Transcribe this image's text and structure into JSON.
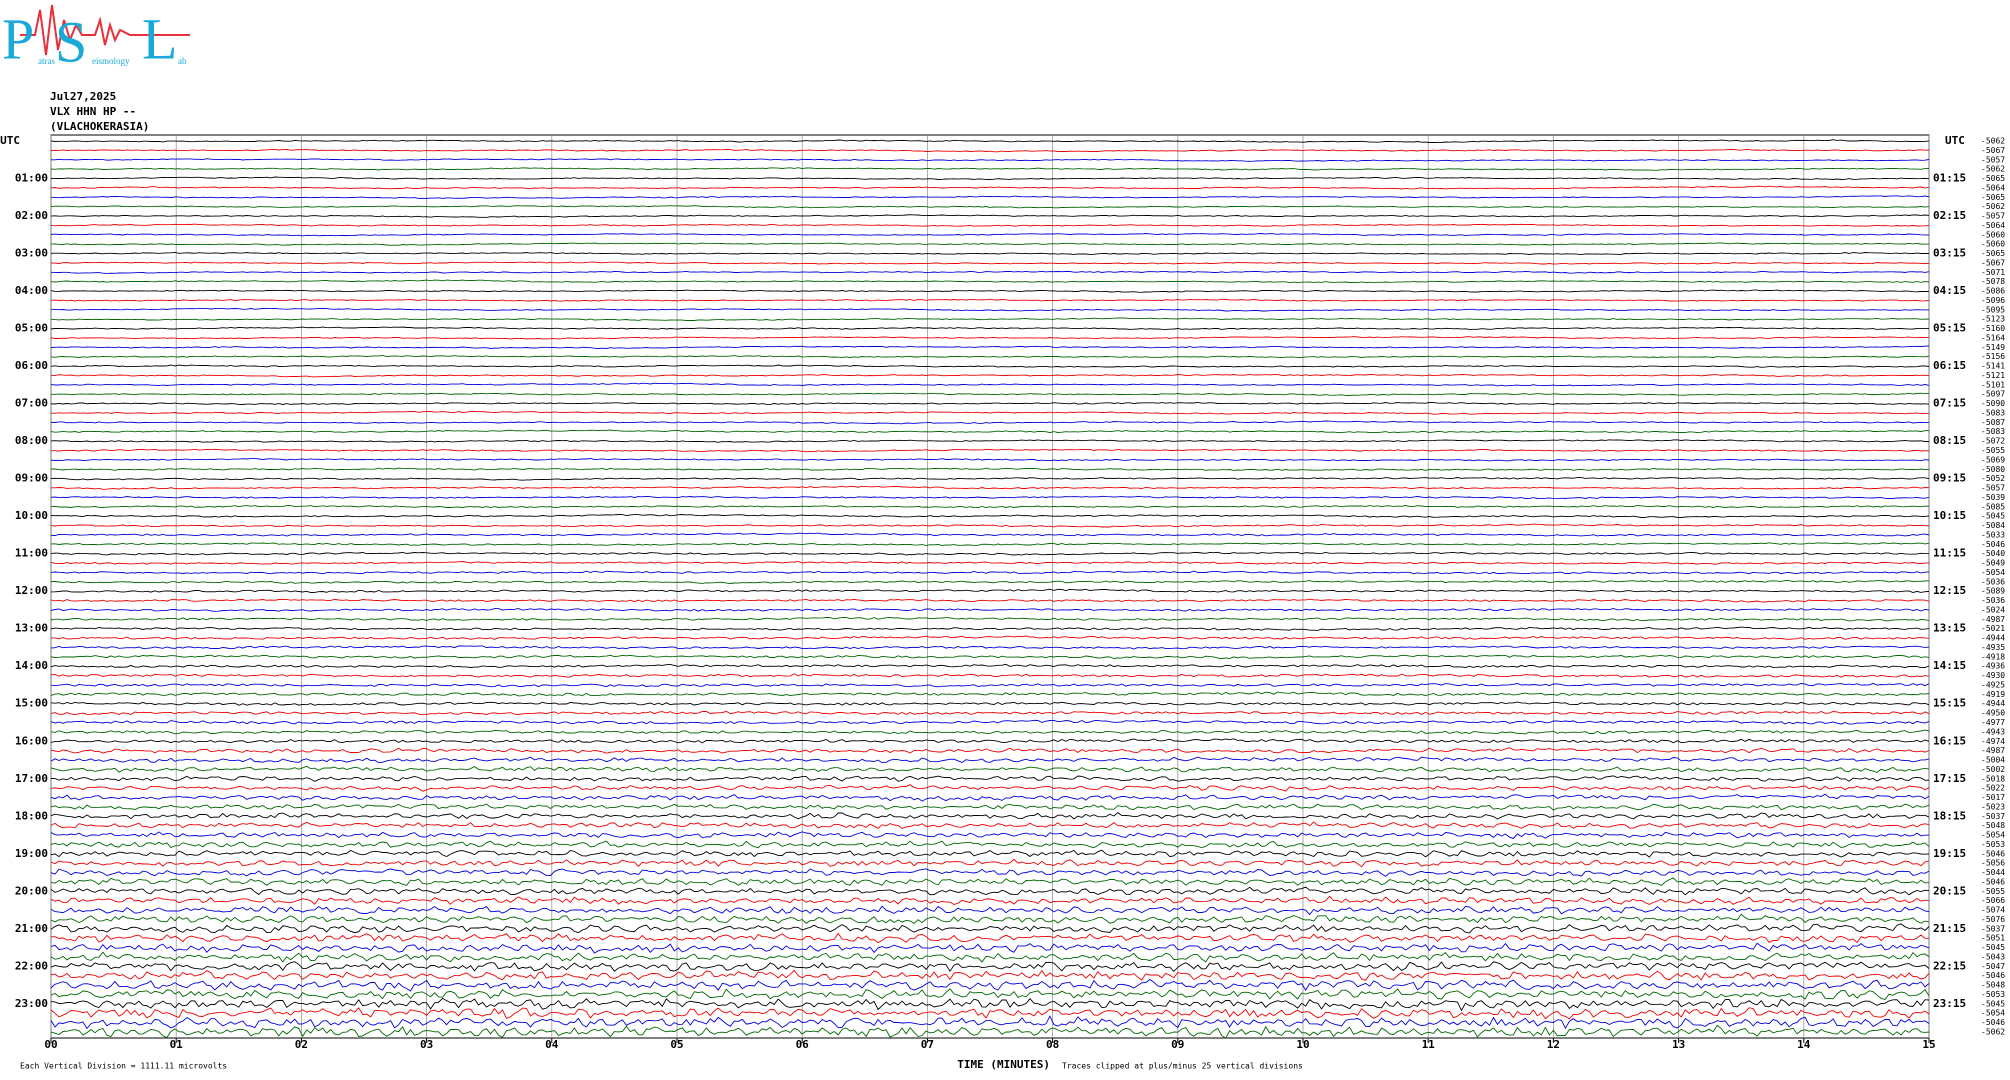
{
  "logo": {
    "letters": [
      "P",
      "S",
      "L"
    ],
    "words": [
      "atras",
      "eismology",
      "ab"
    ]
  },
  "header": {
    "date": "Jul27,2025",
    "station": "VLX HHN HP --",
    "place": "(VLACHOKERASIA)"
  },
  "left_labels": [
    "UTC",
    "01:00",
    "02:00",
    "03:00",
    "04:00",
    "05:00",
    "06:00",
    "07:00",
    "08:00",
    "09:00",
    "10:00",
    "11:00",
    "12:00",
    "13:00",
    "14:00",
    "15:00",
    "16:00",
    "17:00",
    "18:00",
    "19:00",
    "20:00",
    "21:00",
    "22:00",
    "23:00"
  ],
  "right_labels": [
    "UTC",
    "01:15",
    "02:15",
    "03:15",
    "04:15",
    "05:15",
    "06:15",
    "07:15",
    "08:15",
    "09:15",
    "10:15",
    "11:15",
    "12:15",
    "13:15",
    "14:15",
    "15:15",
    "16:15",
    "17:15",
    "18:15",
    "19:15",
    "20:15",
    "21:15",
    "22:15",
    "23:15"
  ],
  "offsets": [
    -5062,
    -5067,
    -5057,
    -5062,
    -5065,
    -5064,
    -5065,
    -5062,
    -5057,
    -5064,
    -5060,
    -5060,
    -5065,
    -5067,
    -5071,
    -5078,
    -5086,
    -5096,
    -5095,
    -5123,
    -5160,
    -5164,
    -5149,
    -5156,
    -5141,
    -5121,
    -5101,
    -5097,
    -5090,
    -5083,
    -5087,
    -5083,
    -5072,
    -5055,
    -5069,
    -5080,
    -5052,
    -5057,
    -5039,
    -5085,
    -5045,
    -5084,
    -5033,
    -5046,
    -5040,
    -5049,
    -5054,
    -5036,
    -5089,
    -5036,
    -5024,
    -4987,
    -5021,
    -4944,
    -4935,
    -4918,
    -4936,
    -4930,
    -4925,
    -4919,
    -4944,
    -4950,
    -4977,
    -4943,
    -4974,
    -4987,
    -5004,
    -5002,
    -5018,
    -5022,
    -5017,
    -5023,
    -5037,
    -5048,
    -5054,
    -5053,
    -5046,
    -5056,
    -5044,
    -5046,
    -5055,
    -5066,
    -5074,
    -5076,
    -5037,
    -5051,
    -5045,
    -5043,
    -5047,
    -5046,
    -5048,
    -5053,
    -5045,
    -5054,
    -5046,
    -5062
  ],
  "x_labels": [
    "00",
    "01",
    "02",
    "03",
    "04",
    "05",
    "06",
    "07",
    "08",
    "09",
    "10",
    "11",
    "12",
    "13",
    "14",
    "15"
  ],
  "footer": {
    "scale": "Each Vertical Division = 1111.11 microvolts",
    "axis": "TIME (MINUTES)",
    "clip": "Traces clipped at plus/minus 25 vertical divisions"
  }
}
